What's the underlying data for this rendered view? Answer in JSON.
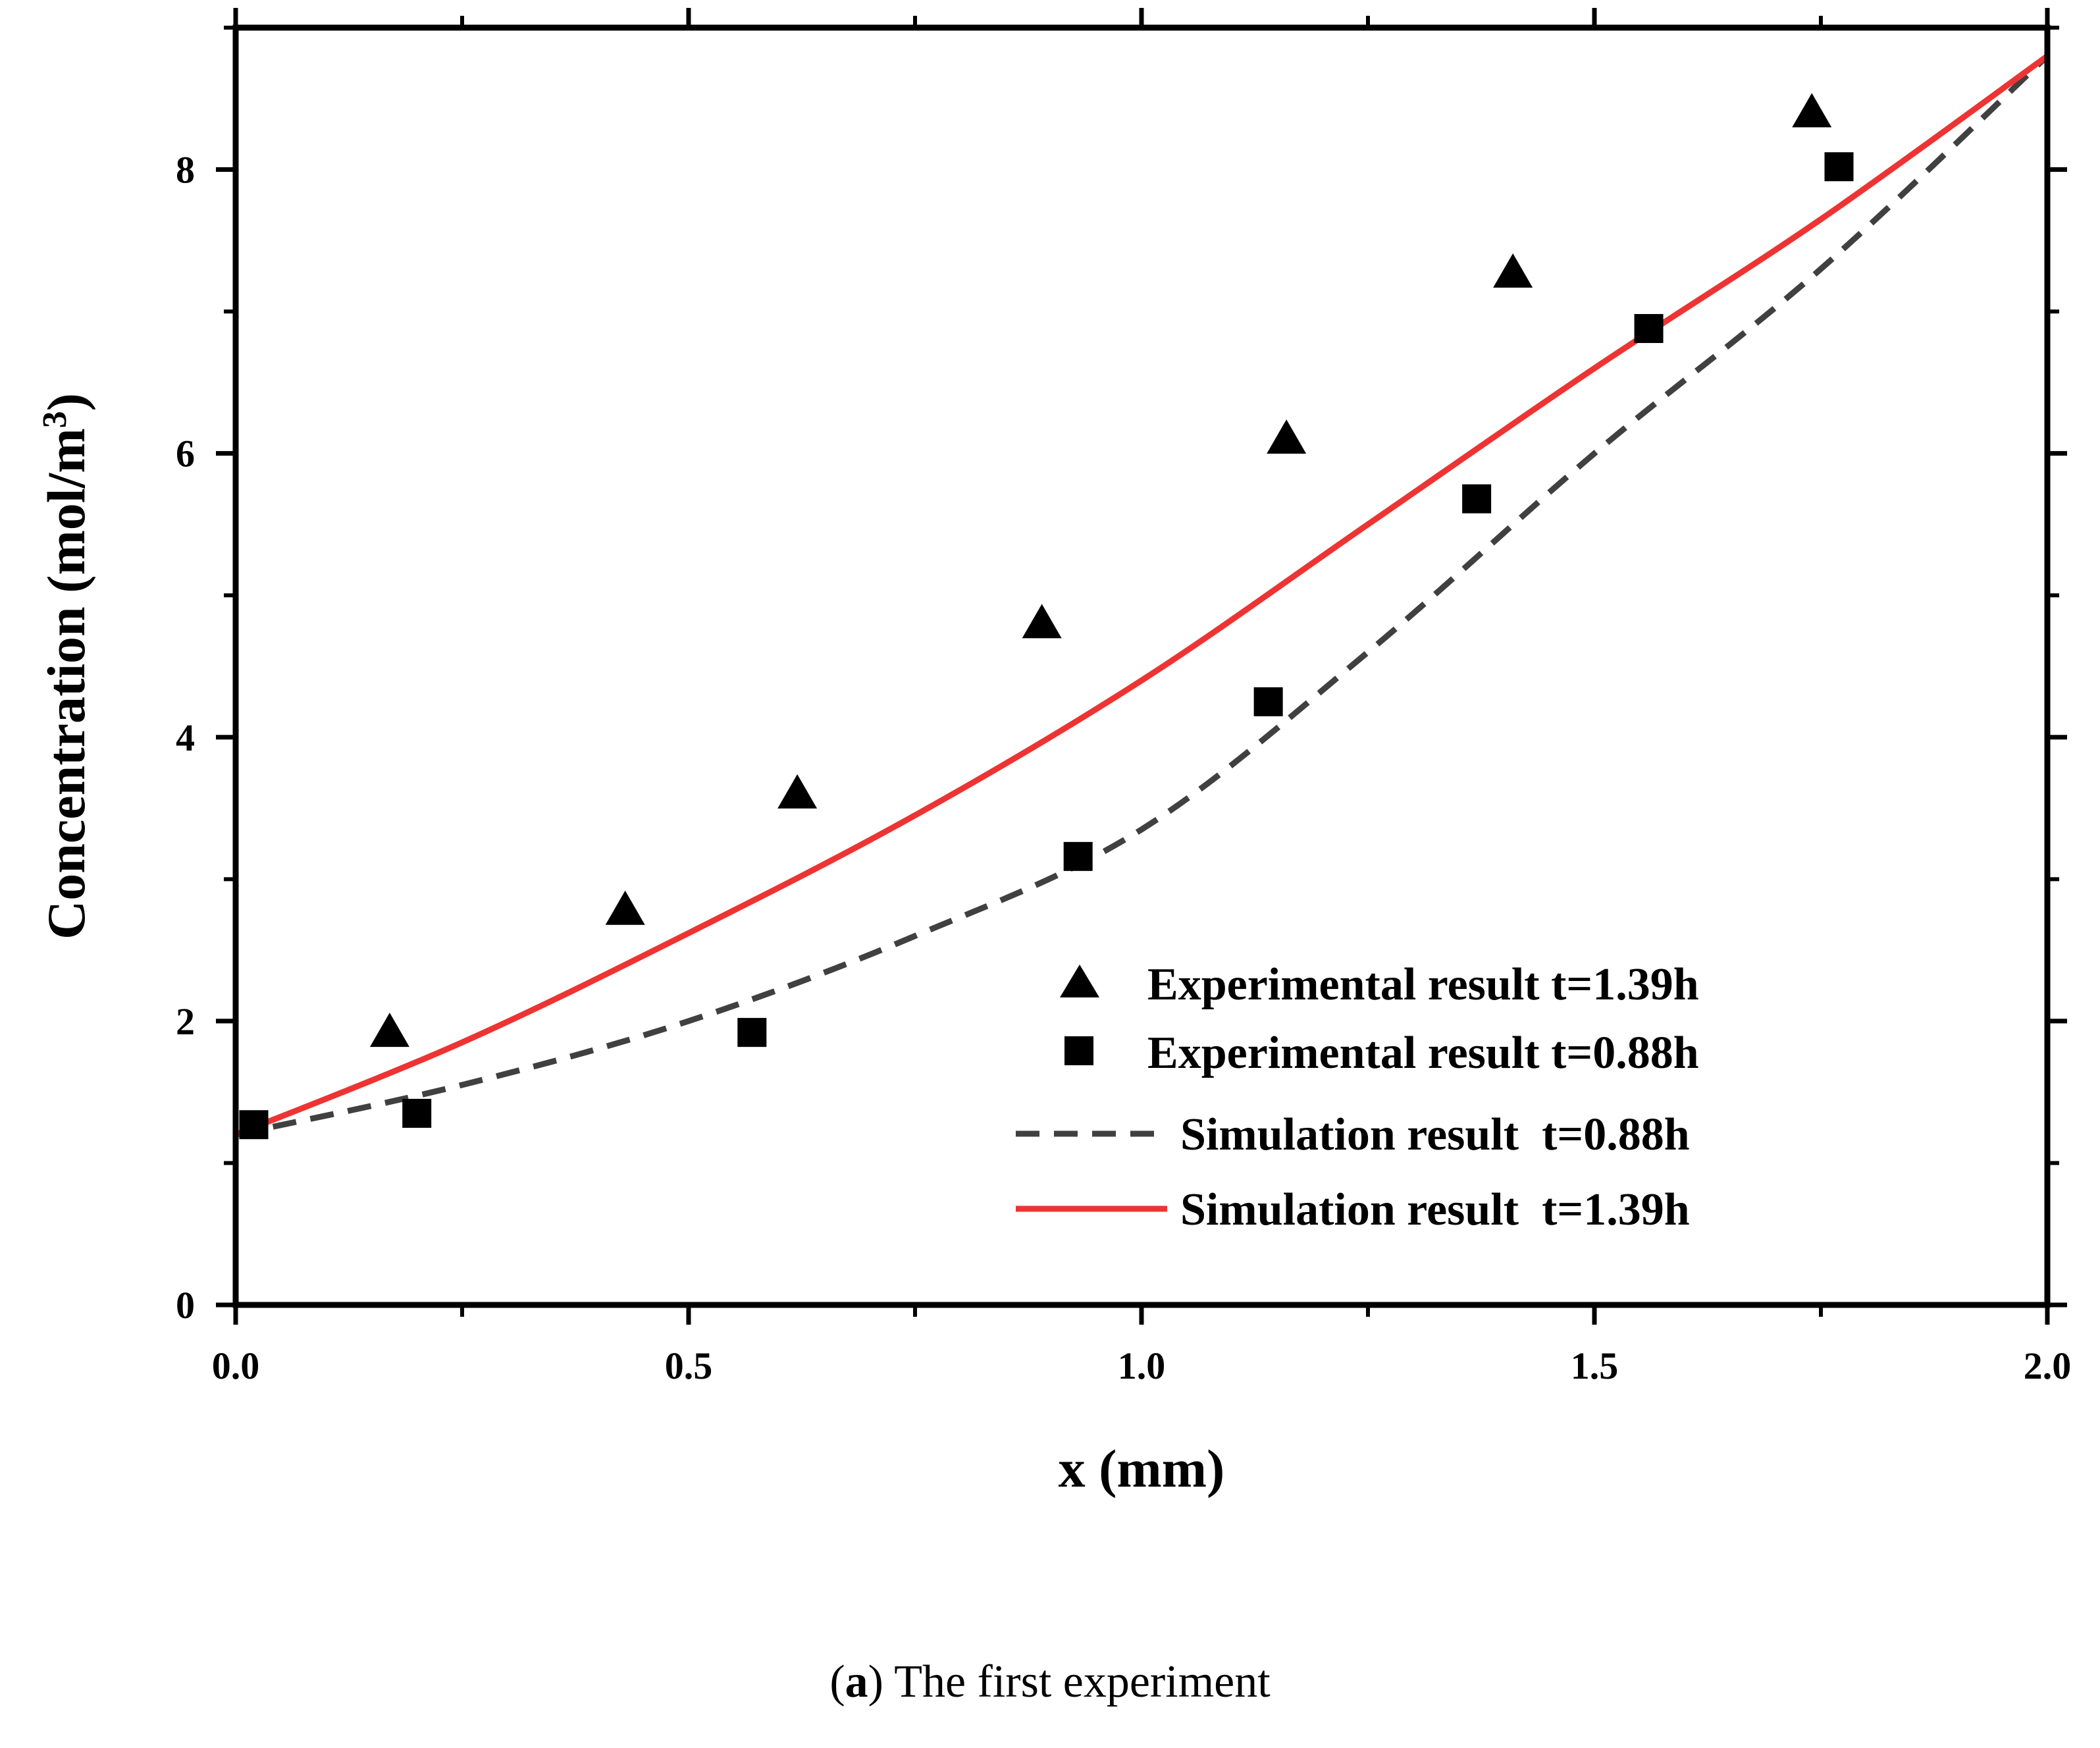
{
  "chart_data": {
    "type": "scatter",
    "title": "",
    "xlabel": "x (mm)",
    "ylabel_main": "Concentration (mol/m",
    "ylabel_sup": "3",
    "ylabel_end": ")",
    "xlim": [
      0,
      2.0
    ],
    "ylim": [
      0,
      9
    ],
    "xticks": [
      0.0,
      0.5,
      1.0,
      1.5,
      2.0
    ],
    "xtick_labels": [
      "0.0",
      "0.5",
      "1.0",
      "1.5",
      "2.0"
    ],
    "yticks": [
      0,
      2,
      4,
      6,
      8
    ],
    "ytick_labels": [
      "0",
      "2",
      "4",
      "6",
      "8"
    ],
    "grid": false,
    "legend_position": "bottom-right",
    "series": [
      {
        "name": "Experimental result t=1.39h",
        "kind": "scatter",
        "marker": "triangle",
        "color": "#000000",
        "x": [
          0.17,
          0.43,
          0.62,
          0.89,
          1.16,
          1.41,
          1.74
        ],
        "y": [
          1.92,
          2.78,
          3.6,
          4.8,
          6.1,
          7.27,
          8.4
        ]
      },
      {
        "name": "Experimental result t=0.88h",
        "kind": "scatter",
        "marker": "square",
        "color": "#000000",
        "x": [
          0.02,
          0.2,
          0.57,
          0.93,
          1.14,
          1.37,
          1.56,
          1.77
        ],
        "y": [
          1.27,
          1.35,
          1.92,
          3.16,
          4.25,
          5.68,
          6.88,
          8.02
        ]
      },
      {
        "name": "Simulation result  t=0.88h",
        "kind": "line",
        "dash": "dashed",
        "color": "#404040",
        "x": [
          0,
          0.25,
          0.5,
          0.75,
          1.0,
          1.25,
          1.5,
          1.75,
          2.0
        ],
        "y": [
          1.2,
          1.55,
          2.0,
          2.6,
          3.35,
          4.6,
          6.0,
          7.3,
          8.8
        ]
      },
      {
        "name": "Simulation result  t=1.39h",
        "kind": "line",
        "dash": "solid",
        "color": "#ee3333",
        "x": [
          0,
          0.25,
          0.5,
          0.75,
          1.0,
          1.25,
          1.5,
          1.75,
          2.0
        ],
        "y": [
          1.2,
          1.85,
          2.62,
          3.45,
          4.4,
          5.5,
          6.6,
          7.65,
          8.8
        ]
      }
    ]
  },
  "caption": {
    "tag_open": "(",
    "tag_letter": "a",
    "tag_close": ")",
    "text": " The first experiment"
  }
}
